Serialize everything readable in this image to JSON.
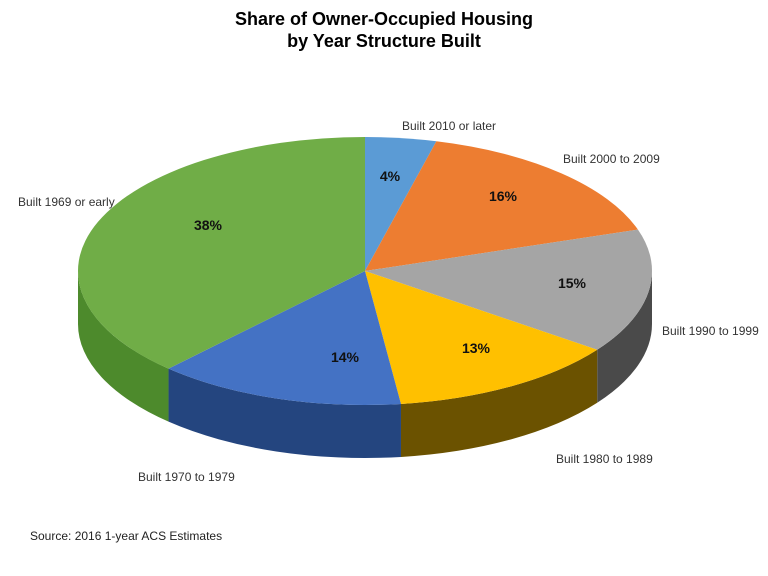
{
  "chart_data": {
    "type": "pie",
    "title_lines": [
      "Share of Owner-Occupied Housing",
      "by Year Structure Built"
    ],
    "slices": [
      {
        "label": "Built 2010 or later",
        "value": 4,
        "value_label": "4%",
        "color": "#5b9bd5",
        "side_color": "#3f77ad"
      },
      {
        "label": "Built 2000 to 2009",
        "value": 16,
        "value_label": "16%",
        "color": "#ed7d31",
        "side_color": "#b0581c"
      },
      {
        "label": "Built 1990 to 1999",
        "value": 15,
        "value_label": "15%",
        "color": "#a5a5a5",
        "side_color": "#4a4a4a"
      },
      {
        "label": "Built 1980 to 1989",
        "value": 13,
        "value_label": "13%",
        "color": "#ffc000",
        "side_color": "#6b5200"
      },
      {
        "label": "Built 1970 to 1979",
        "value": 14,
        "value_label": "14%",
        "color": "#4472c4",
        "side_color": "#24457f"
      },
      {
        "label": "Built 1969 or early",
        "value": 38,
        "value_label": "38%",
        "color": "#70ad47",
        "side_color": "#4d8a2c"
      }
    ],
    "start": "top",
    "direction": "clockwise",
    "style": "3d"
  },
  "source": "Source: 2016 1-year ACS Estimates"
}
